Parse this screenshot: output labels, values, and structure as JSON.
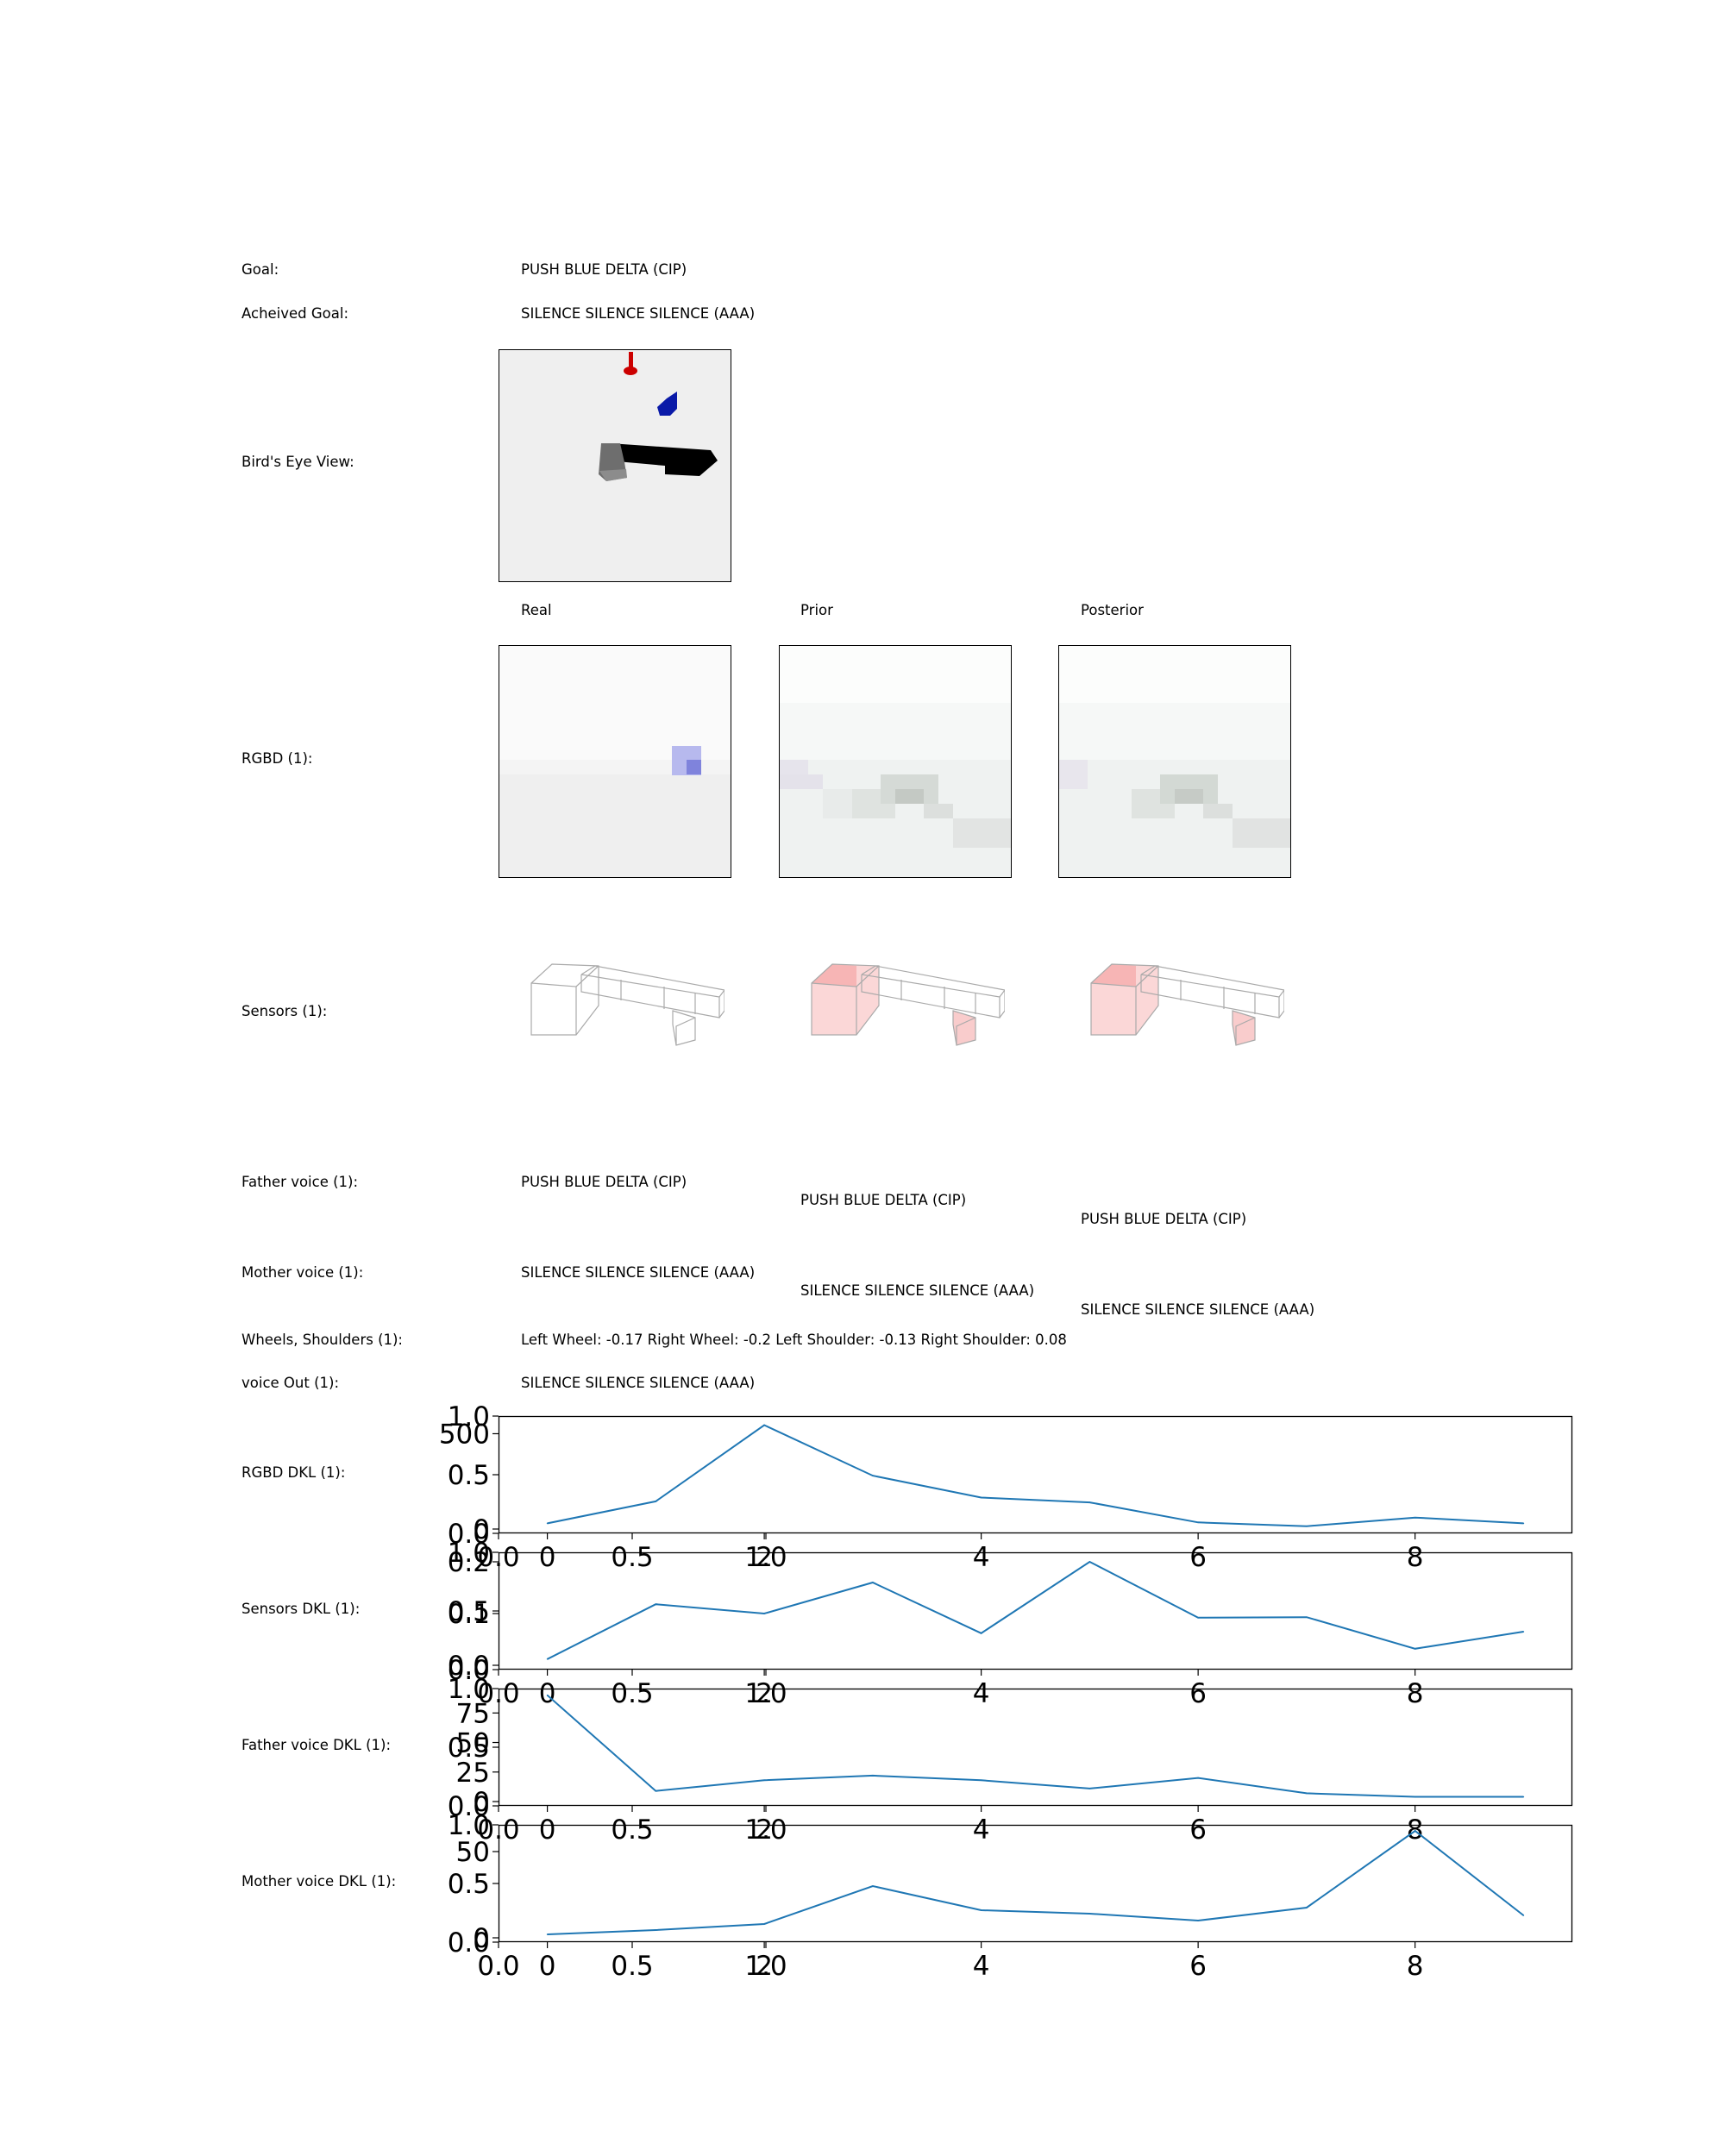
{
  "rows": {
    "goal": {
      "label": "Goal:",
      "value": "PUSH BLUE DELTA (CIP)"
    },
    "achieved": {
      "label": "Acheived Goal:",
      "value": "SILENCE SILENCE SILENCE (AAA)"
    },
    "birds_eye": {
      "label": "Bird's Eye View:"
    },
    "rgbd": {
      "label": "RGBD (1):"
    },
    "sensors": {
      "label": "Sensors (1):"
    },
    "father_voice": {
      "label": "Father voice (1):",
      "real": "PUSH BLUE DELTA (CIP)",
      "prior": "PUSH BLUE DELTA (CIP)",
      "posterior": "PUSH BLUE DELTA (CIP)"
    },
    "mother_voice": {
      "label": "Mother voice (1):",
      "real": "SILENCE SILENCE SILENCE (AAA)",
      "prior": "SILENCE SILENCE SILENCE (AAA)",
      "posterior": "SILENCE SILENCE SILENCE (AAA)"
    },
    "wheels": {
      "label": "Wheels, Shoulders (1):",
      "value": "Left Wheel: -0.17 Right Wheel: -0.2 Left Shoulder: -0.13 Right Shoulder: 0.08"
    },
    "voice_out": {
      "label": "voice Out (1):",
      "value": "SILENCE SILENCE SILENCE (AAA)"
    }
  },
  "columns": {
    "real": "Real",
    "prior": "Prior",
    "posterior": "Posterior"
  },
  "colors": {
    "line": "#1f77b4",
    "wireframe": "#aaaaaa",
    "highlight": "#f7b5b5",
    "agent_red": "#cc0000",
    "object_blue": "#0a1aa8"
  },
  "chart_data": [
    {
      "type": "line",
      "label": "RGBD DKL (1):",
      "x": [
        0,
        1,
        2,
        3,
        4,
        5,
        6,
        7,
        8,
        9
      ],
      "values": [
        30,
        145,
        545,
        280,
        165,
        140,
        35,
        15,
        60,
        30
      ],
      "yticks": [
        "0",
        "500"
      ],
      "ylim": [
        0,
        570
      ],
      "xticks": [
        "0",
        "2",
        "4",
        "6",
        "8"
      ],
      "overlay_yticks": [
        "0.0",
        "0.5",
        "1.0"
      ],
      "overlay_xticks": [
        "0.0",
        "0.5",
        "1.0"
      ]
    },
    {
      "type": "line",
      "label": "Sensors DKL (1):",
      "x": [
        0,
        1,
        2,
        3,
        4,
        5,
        6,
        7,
        8,
        9
      ],
      "values": [
        0.012,
        0.118,
        0.1,
        0.16,
        0.062,
        0.2,
        0.092,
        0.093,
        0.032,
        0.065
      ],
      "yticks": [
        "0.0",
        "0.1",
        "0.2"
      ],
      "ylim": [
        0,
        0.21
      ],
      "xticks": [
        "0",
        "2",
        "4",
        "6",
        "8"
      ],
      "overlay_yticks": [
        "0.0",
        "0.5",
        "1.0"
      ],
      "overlay_xticks": [
        "0.0",
        "0.5",
        "1.0"
      ]
    },
    {
      "type": "line",
      "label": "Father voice DKL (1):",
      "x": [
        0,
        1,
        2,
        3,
        4,
        5,
        6,
        7,
        8,
        9
      ],
      "values": [
        90,
        9,
        18,
        22,
        18,
        11,
        20,
        7,
        4,
        4
      ],
      "yticks": [
        "0",
        "25",
        "50",
        "75"
      ],
      "ylim": [
        0,
        92
      ],
      "xticks": [
        "0",
        "2",
        "4",
        "6",
        "8"
      ],
      "overlay_yticks": [
        "0.0",
        "0.5",
        "1.0"
      ],
      "overlay_xticks": [
        "0.0",
        "0.5",
        "1.0"
      ]
    },
    {
      "type": "line",
      "label": "Mother voice DKL (1):",
      "x": [
        0,
        1,
        2,
        3,
        4,
        5,
        6,
        7,
        8,
        9
      ],
      "values": [
        2,
        4.5,
        8,
        30,
        16,
        14,
        10,
        17.5,
        62,
        13
      ],
      "yticks": [
        "0",
        "50"
      ],
      "ylim": [
        0,
        63
      ],
      "xticks": [
        "0",
        "2",
        "4",
        "6",
        "8"
      ],
      "overlay_yticks": [
        "0.0",
        "0.5",
        "1.0"
      ],
      "overlay_xticks": [
        "0.0",
        "0.5",
        "1.0"
      ]
    }
  ]
}
